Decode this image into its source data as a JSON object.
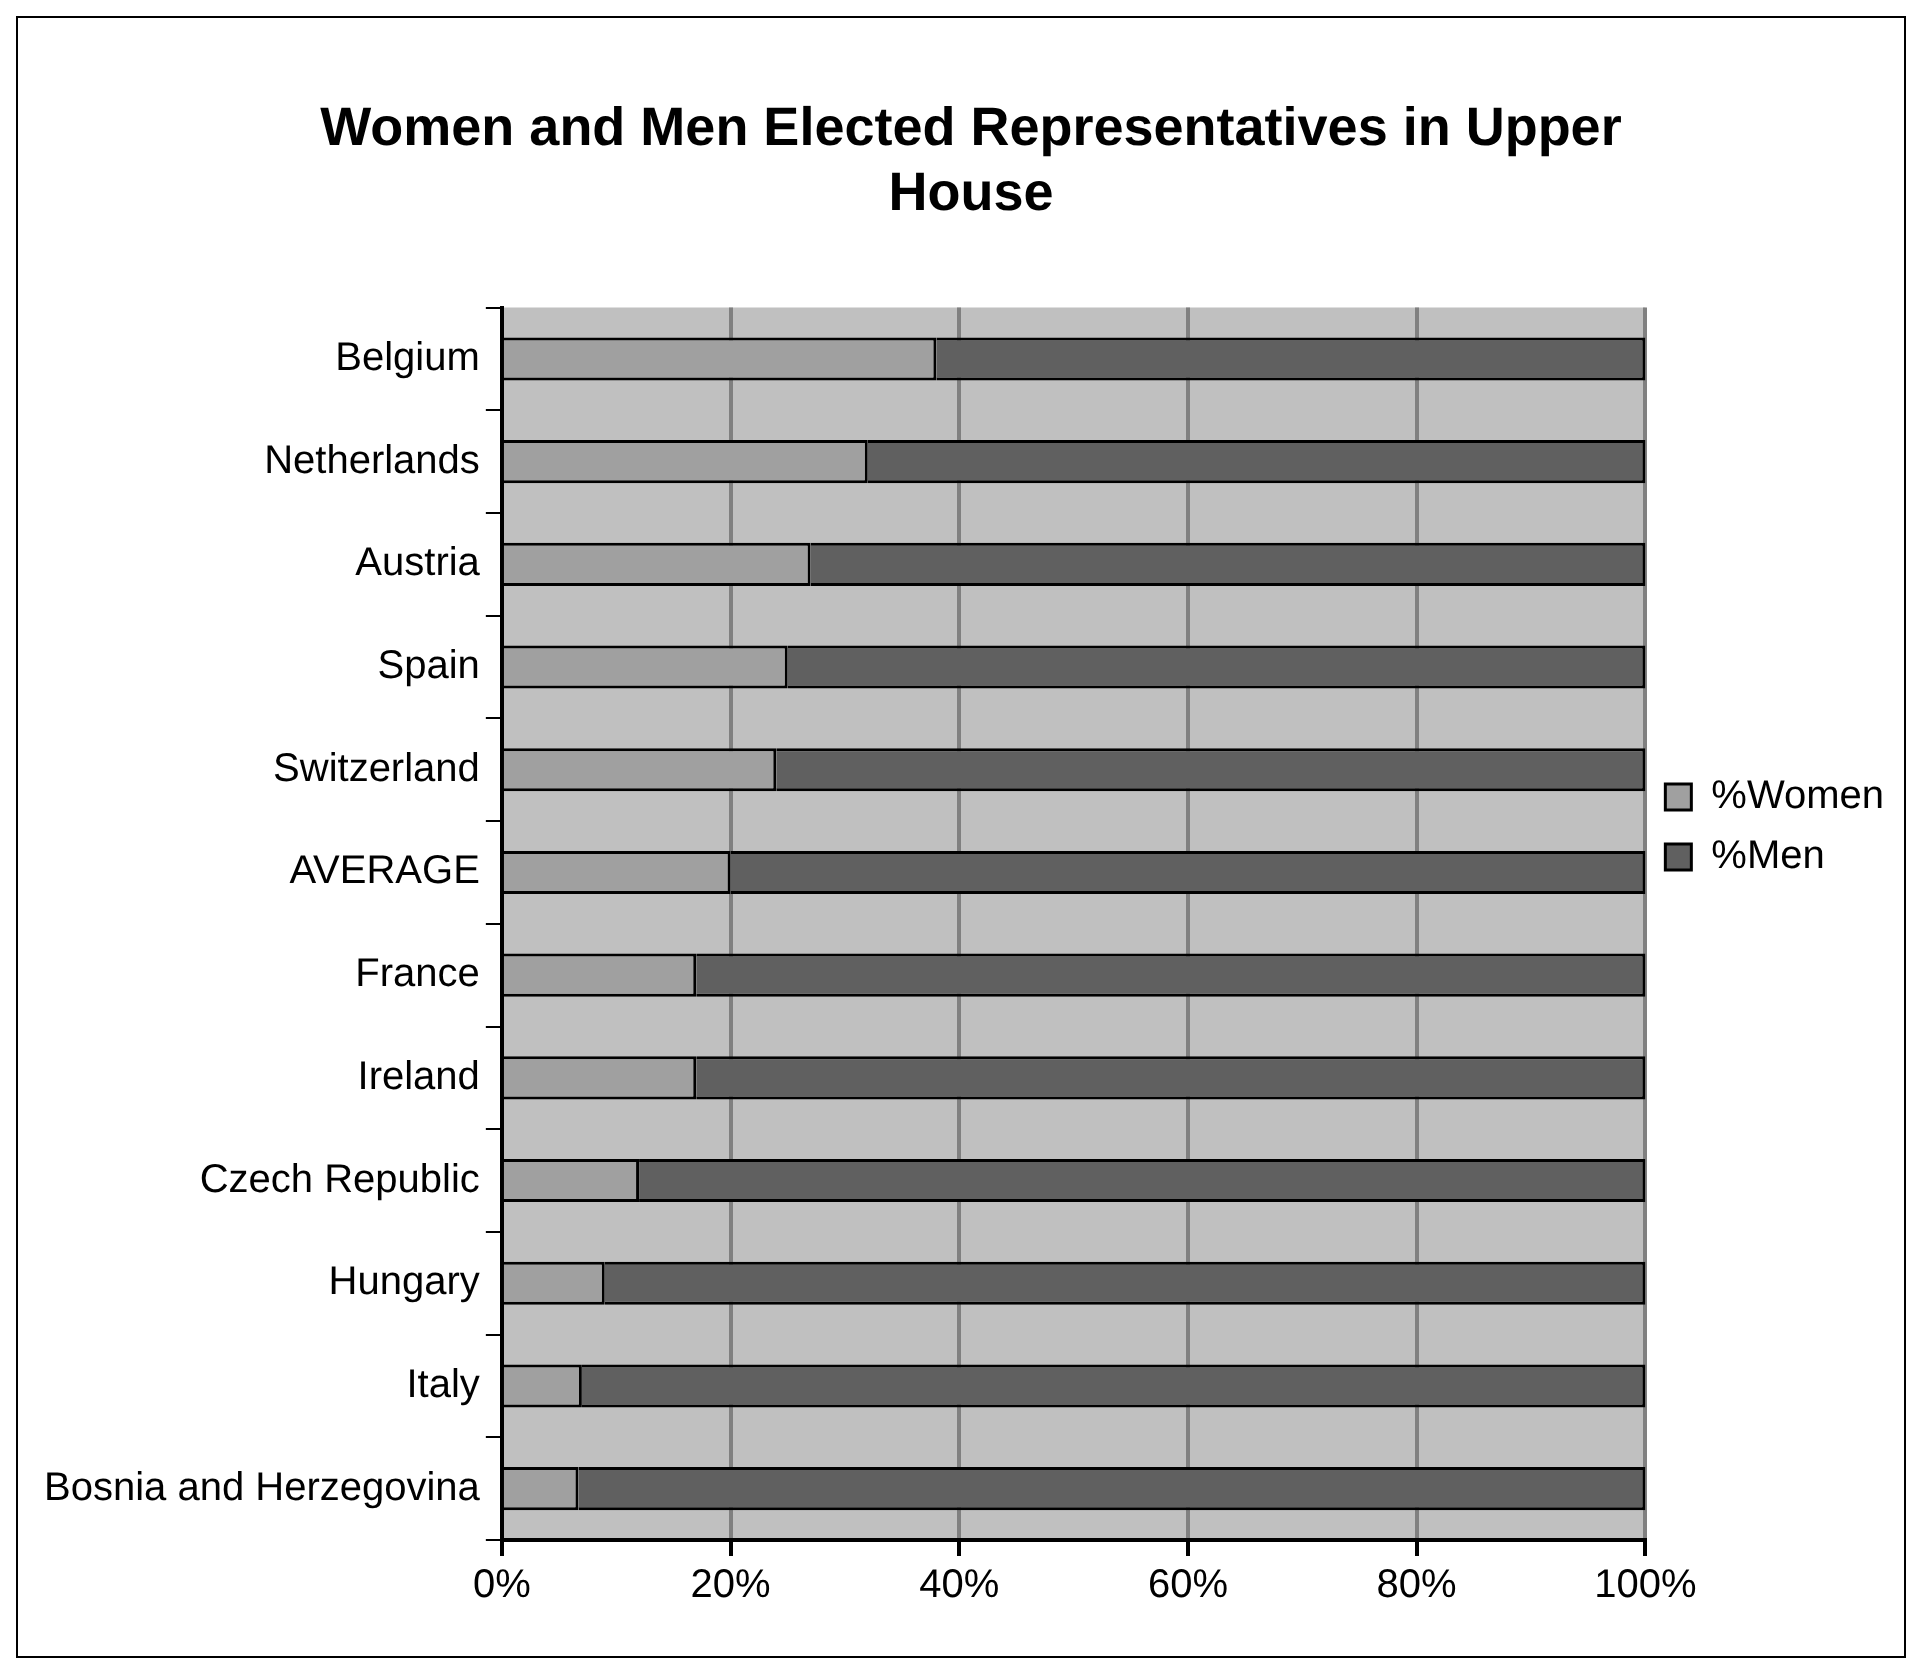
{
  "chart_data": {
    "type": "bar",
    "title": "Women and Men Elected Representatives in Upper House",
    "orientation": "horizontal",
    "stacked": true,
    "categories": [
      "Belgium",
      "Netherlands",
      "Austria",
      "Spain",
      "Switzerland",
      "AVERAGE",
      "France",
      "Ireland",
      "Czech Republic",
      "Hungary",
      "Italy",
      "Bosnia and Herzegovina"
    ],
    "series": [
      {
        "name": "%Women",
        "color": "#a0a0a0",
        "values": [
          38,
          32,
          27,
          25,
          24,
          20,
          17,
          17,
          12,
          9,
          7,
          6.7
        ]
      },
      {
        "name": "%Men",
        "color": "#606060",
        "values": [
          62,
          68,
          73,
          75,
          76,
          80,
          83,
          83,
          88,
          91,
          93,
          93.3
        ]
      }
    ],
    "xlim": [
      0,
      100
    ],
    "xticks": [
      {
        "value": 0,
        "label": "0%"
      },
      {
        "value": 20,
        "label": "20%"
      },
      {
        "value": 40,
        "label": "40%"
      },
      {
        "value": 60,
        "label": "60%"
      },
      {
        "value": 80,
        "label": "80%"
      },
      {
        "value": 100,
        "label": "100%"
      }
    ],
    "grid": "x",
    "legend": "right"
  }
}
